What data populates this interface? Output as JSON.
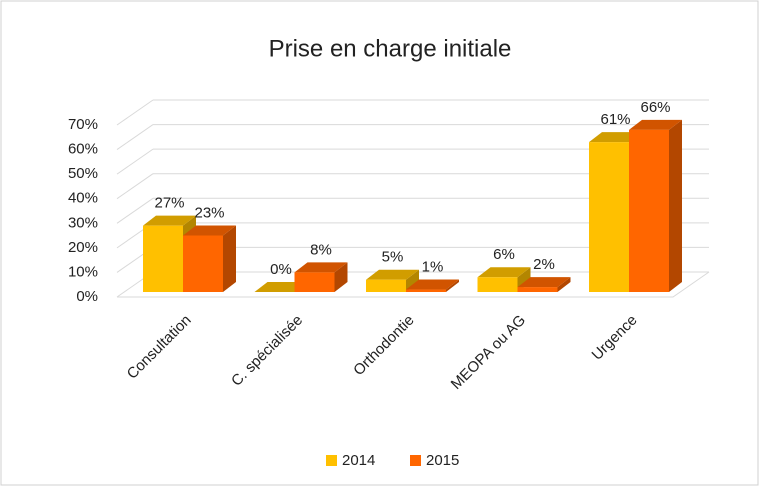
{
  "chart_data": {
    "type": "bar3d",
    "title": "Prise en charge initiale",
    "categories": [
      "Consultation",
      "C. spécialisée",
      "Orthodontie",
      "MEOPA ou AG",
      "Urgence"
    ],
    "series": [
      {
        "name": "2014",
        "color": "#ffc000",
        "values": [
          27,
          0,
          5,
          6,
          61
        ],
        "value_labels": [
          "27%",
          "0%",
          "5%",
          "6%",
          "61%"
        ]
      },
      {
        "name": "2015",
        "color": "#ff6600",
        "values": [
          23,
          8,
          1,
          2,
          66
        ],
        "value_labels": [
          "23%",
          "8%",
          "1%",
          "2%",
          "66%"
        ]
      }
    ],
    "ylim": [
      0,
      70
    ],
    "yticks": [
      {
        "value": 0,
        "label": "0%"
      },
      {
        "value": 10,
        "label": "10%"
      },
      {
        "value": 20,
        "label": "20%"
      },
      {
        "value": 30,
        "label": "30%"
      },
      {
        "value": 40,
        "label": "40%"
      },
      {
        "value": 50,
        "label": "50%"
      },
      {
        "value": 60,
        "label": "60%"
      },
      {
        "value": 70,
        "label": "70%"
      }
    ],
    "grid": true,
    "legend": "bottom"
  }
}
